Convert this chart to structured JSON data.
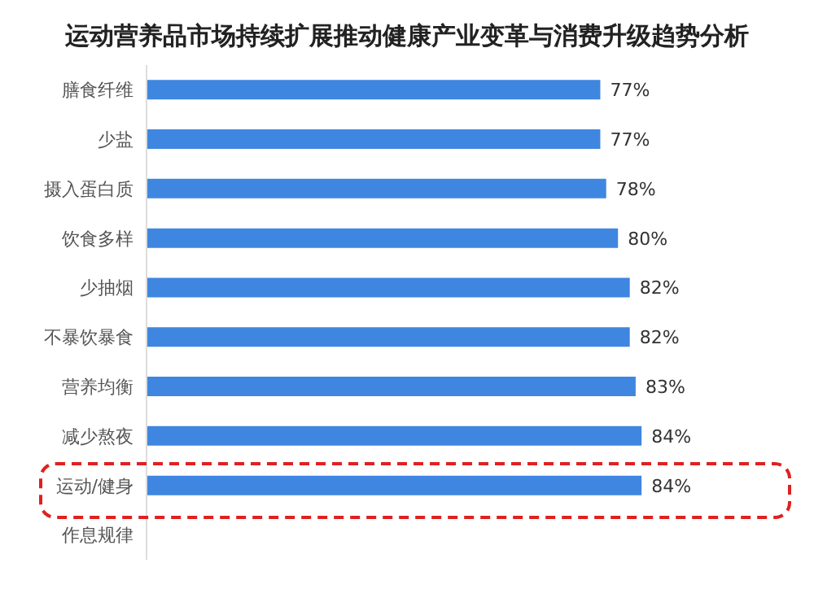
{
  "chart_data": {
    "type": "bar",
    "orientation": "horizontal",
    "title": "运动营养品市场持续扩展推动健康产业变革与消费升级趋势分析",
    "categories": [
      "膳食纤维",
      "少盐",
      "摄入蛋白质",
      "饮食多样",
      "少抽烟",
      "不暴饮暴食",
      "营养均衡",
      "减少熬夜",
      "运动/健身",
      "作息规律"
    ],
    "values": [
      77,
      77,
      78,
      80,
      82,
      82,
      83,
      84,
      84,
      null
    ],
    "value_labels": [
      "77%",
      "77%",
      "78%",
      "80%",
      "82%",
      "82%",
      "83%",
      "84%",
      "84%",
      null
    ],
    "color": "#3f86e0",
    "tick_labels": "y"
  }
}
